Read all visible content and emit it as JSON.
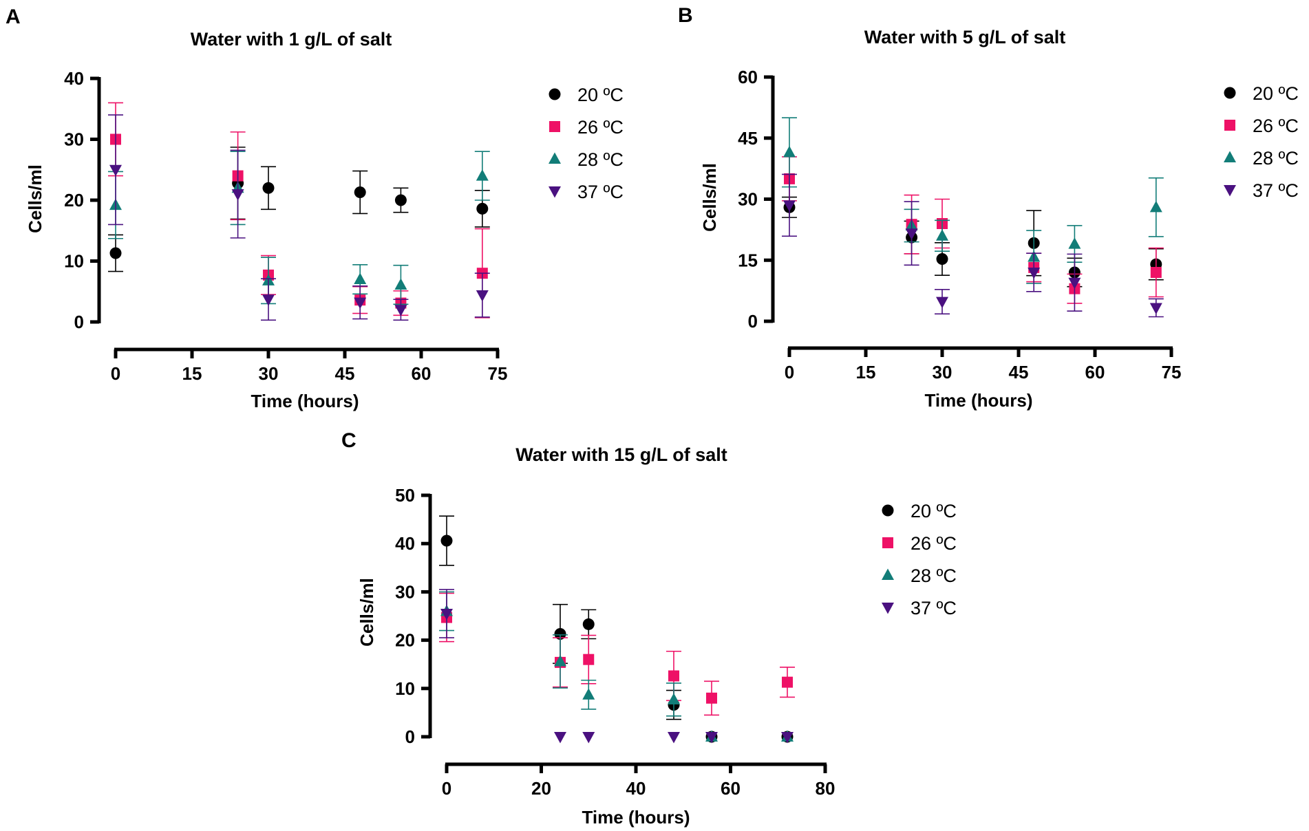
{
  "colors": {
    "20 ºC": "#000000",
    "26 ºC": "#ee1166",
    "28 ºC": "#127d78",
    "37 ºC": "#4a1180"
  },
  "chart_data": [
    {
      "panel": "A",
      "type": "scatter",
      "title": "Water with 1 g/L of salt",
      "xlabel": "Time (hours)",
      "ylabel": "Cells/ml",
      "xlim": [
        0,
        75
      ],
      "ylim": [
        0,
        40
      ],
      "xticks": [
        0,
        15,
        30,
        45,
        60,
        75
      ],
      "yticks": [
        0,
        10,
        20,
        30,
        40
      ],
      "grid": false,
      "legend": "right",
      "series": [
        {
          "name": "20 ºC",
          "marker": "circle",
          "x": [
            0,
            24,
            30,
            48,
            56,
            72
          ],
          "y": [
            11.3,
            22.8,
            22.0,
            21.3,
            20.0,
            18.6
          ],
          "error": [
            3.0,
            5.9,
            3.5,
            3.5,
            2.0,
            3.0
          ]
        },
        {
          "name": "26 ºC",
          "marker": "square",
          "x": [
            0,
            24,
            30,
            48,
            56,
            72
          ],
          "y": [
            30.0,
            24.0,
            7.7,
            3.6,
            3.1,
            8.0
          ],
          "error": [
            6.0,
            7.2,
            3.2,
            2.2,
            2.0,
            7.3
          ]
        },
        {
          "name": "28 ºC",
          "marker": "triangle-up",
          "x": [
            0,
            24,
            30,
            48,
            56,
            72
          ],
          "y": [
            19.2,
            22.0,
            6.8,
            7.0,
            6.1,
            24.0
          ],
          "error": [
            5.5,
            6.0,
            3.8,
            2.4,
            3.2,
            4.0
          ]
        },
        {
          "name": "37 ºC",
          "marker": "triangle-down",
          "x": [
            0,
            24,
            30,
            48,
            56,
            72
          ],
          "y": [
            25.0,
            21.0,
            3.7,
            3.2,
            2.0,
            4.4
          ],
          "error": [
            9.0,
            7.2,
            3.4,
            2.7,
            1.7,
            3.6
          ]
        }
      ]
    },
    {
      "panel": "B",
      "type": "scatter",
      "title": "Water with 5 g/L of salt",
      "xlabel": "Time (hours)",
      "ylabel": "Cells/ml",
      "xlim": [
        0,
        75
      ],
      "ylim": [
        0,
        60
      ],
      "xticks": [
        0,
        15,
        30,
        45,
        60,
        75
      ],
      "yticks": [
        0,
        15,
        30,
        45,
        60
      ],
      "grid": false,
      "legend": "right",
      "series": [
        {
          "name": "20 ºC",
          "marker": "circle",
          "x": [
            0,
            24,
            30,
            48,
            56,
            72
          ],
          "y": [
            28.0,
            20.6,
            15.3,
            19.2,
            12.0,
            14.0
          ],
          "error": [
            2.5,
            4.0,
            4.0,
            8.0,
            3.5,
            3.8
          ]
        },
        {
          "name": "26 ºC",
          "marker": "square",
          "x": [
            0,
            24,
            30,
            48,
            56,
            72
          ],
          "y": [
            35.0,
            23.8,
            24.0,
            13.2,
            8.0,
            12.0
          ],
          "error": [
            5.4,
            7.2,
            6.0,
            3.5,
            3.6,
            6.0
          ]
        },
        {
          "name": "28 ºC",
          "marker": "triangle-up",
          "x": [
            0,
            24,
            30,
            48,
            56,
            72
          ],
          "y": [
            41.5,
            23.5,
            21.0,
            15.8,
            19.0,
            28.0
          ],
          "error": [
            8.5,
            4.0,
            3.8,
            6.5,
            4.5,
            7.2
          ]
        },
        {
          "name": "37 ºC",
          "marker": "triangle-down",
          "x": [
            0,
            24,
            30,
            48,
            56,
            72
          ],
          "y": [
            28.5,
            21.6,
            4.8,
            12.0,
            9.5,
            3.3
          ],
          "error": [
            7.6,
            7.8,
            3.0,
            4.7,
            7.0,
            2.2
          ]
        }
      ]
    },
    {
      "panel": "C",
      "type": "scatter",
      "title": "Water with 15 g/L of salt",
      "xlabel": "Time (hours)",
      "ylabel": "Cells/ml",
      "xlim": [
        0,
        80
      ],
      "ylim": [
        0,
        50
      ],
      "xticks": [
        0,
        20,
        40,
        60,
        80
      ],
      "yticks": [
        0,
        10,
        20,
        30,
        40,
        50
      ],
      "grid": false,
      "legend": "right",
      "series": [
        {
          "name": "20 ºC",
          "marker": "circle",
          "x": [
            0,
            24,
            30,
            48,
            56,
            72
          ],
          "y": [
            40.6,
            21.3,
            23.3,
            6.6,
            0.0,
            0.0
          ],
          "error": [
            5.1,
            6.1,
            3.0,
            3.0,
            0.0,
            0.0
          ]
        },
        {
          "name": "26 ºC",
          "marker": "square",
          "x": [
            0,
            24,
            30,
            48,
            56,
            72
          ],
          "y": [
            24.7,
            15.4,
            16.0,
            12.6,
            8.0,
            11.3
          ],
          "error": [
            5.0,
            5.1,
            5.0,
            5.1,
            3.5,
            3.1
          ]
        },
        {
          "name": "28 ºC",
          "marker": "triangle-up",
          "x": [
            0,
            24,
            30,
            48,
            56,
            72
          ],
          "y": [
            26.0,
            15.6,
            8.7,
            7.7,
            0.0,
            0.0
          ],
          "error": [
            4.0,
            5.5,
            3.0,
            3.4,
            0.0,
            0.0
          ]
        },
        {
          "name": "37 ºC",
          "marker": "triangle-down",
          "x": [
            0,
            24,
            30,
            48,
            56,
            72
          ],
          "y": [
            25.5,
            0.0,
            0.0,
            0.0,
            0.0,
            0.0
          ],
          "error": [
            5.0,
            0.0,
            0.0,
            0.0,
            0.0,
            0.0
          ]
        }
      ]
    }
  ]
}
